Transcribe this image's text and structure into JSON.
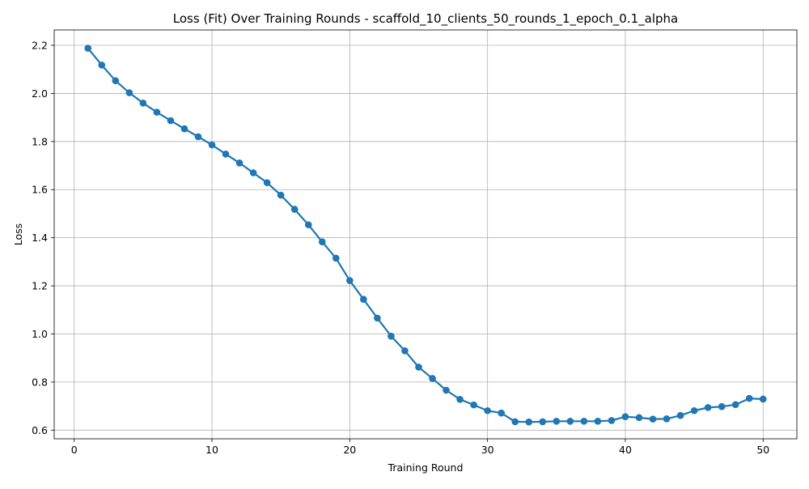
{
  "chart_data": {
    "type": "line",
    "title": "Loss (Fit) Over Training Rounds  - scaffold_10_clients_50_rounds_1_epoch_0.1_alpha",
    "xlabel": "Training Round",
    "ylabel": "Loss",
    "xlim": [
      -1.45,
      52.45
    ],
    "ylim": [
      0.564,
      2.264
    ],
    "xticks": [
      0,
      10,
      20,
      30,
      40,
      50
    ],
    "xtick_labels": [
      "0",
      "10",
      "20",
      "30",
      "40",
      "50"
    ],
    "yticks": [
      0.6,
      0.8,
      1.0,
      1.2,
      1.4,
      1.6,
      1.8,
      2.0,
      2.2
    ],
    "ytick_labels": [
      "0.6",
      "0.8",
      "1.0",
      "1.2",
      "1.4",
      "1.6",
      "1.8",
      "2.0",
      "2.2"
    ],
    "grid": true,
    "marker": "circle",
    "color": "#1f77b4",
    "series": [
      {
        "x": [
          1,
          2,
          3,
          4,
          5,
          6,
          7,
          8,
          9,
          10,
          11,
          12,
          13,
          14,
          15,
          16,
          17,
          18,
          19,
          20,
          21,
          22,
          23,
          24,
          25,
          26,
          27,
          28,
          29,
          30,
          31,
          32,
          33,
          34,
          35,
          36,
          37,
          38,
          39,
          40,
          41,
          42,
          43,
          44,
          45,
          46,
          47,
          48,
          49,
          50
        ],
        "values": [
          2.188,
          2.118,
          2.053,
          2.003,
          1.96,
          1.922,
          1.887,
          1.853,
          1.82,
          1.786,
          1.748,
          1.711,
          1.67,
          1.629,
          1.577,
          1.518,
          1.454,
          1.383,
          1.315,
          1.222,
          1.144,
          1.066,
          0.991,
          0.93,
          0.862,
          0.815,
          0.766,
          0.728,
          0.705,
          0.681,
          0.671,
          0.635,
          0.634,
          0.635,
          0.637,
          0.637,
          0.637,
          0.637,
          0.64,
          0.656,
          0.652,
          0.646,
          0.647,
          0.661,
          0.681,
          0.694,
          0.698,
          0.706,
          0.732,
          0.729
        ]
      }
    ]
  }
}
